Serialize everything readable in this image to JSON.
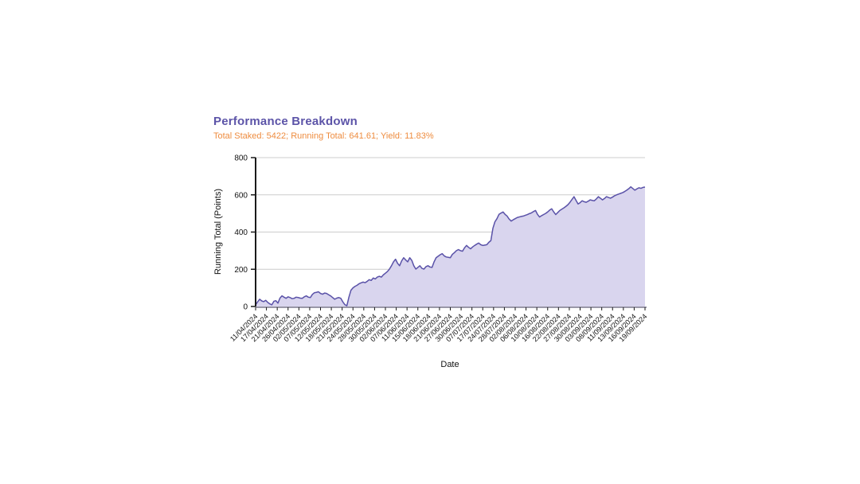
{
  "header": {
    "title": "Performance Breakdown",
    "subtitle": "Total Staked: 5422; Running Total: 641.61; Yield: 11.83%"
  },
  "stats": {
    "total_staked": "5422",
    "running_total": "641.61",
    "yield": "11.83%"
  },
  "colors": {
    "title_text": "#5c54a8",
    "subtitle_text": "#ee8c3f",
    "line": "#5a52a8",
    "area_fill": "#d9d5ee",
    "grid": "#cccccc",
    "y_axis": "#1a1a1a",
    "x_axis": "#9a98a8",
    "tick_text": "#111111"
  },
  "chart_data": {
    "type": "area",
    "title": "Performance Breakdown",
    "subtitle": "Total Staked: 5422; Running Total: 641.61; Yield: 11.83%",
    "xlabel": "Date",
    "ylabel": "Running Total (Points)",
    "ylim": [
      0,
      800
    ],
    "yticks": [
      0,
      200,
      400,
      600,
      800
    ],
    "grid": "horizontal-only",
    "legend": "none",
    "x_tick_labels": [
      "11/04/2024",
      "17/04/2024",
      "21/04/2024",
      "26/04/2024",
      "02/05/2024",
      "07/05/2024",
      "12/05/2024",
      "18/05/2024",
      "21/05/2024",
      "24/05/2024",
      "28/05/2024",
      "30/05/2024",
      "02/06/2024",
      "07/06/2024",
      "11/06/2024",
      "15/06/2024",
      "18/06/2024",
      "21/06/2024",
      "27/06/2024",
      "30/06/2024",
      "07/07/2024",
      "17/07/2024",
      "24/07/2024",
      "28/07/2024",
      "02/08/2024",
      "06/08/2024",
      "10/08/2024",
      "16/08/2024",
      "22/08/2024",
      "27/08/2024",
      "30/08/2024",
      "03/09/2024",
      "08/09/2024",
      "11/09/2024",
      "13/09/2024",
      "16/09/2024",
      "19/09/2024"
    ],
    "series": [
      {
        "name": "Running Total",
        "final_value": 641.61,
        "values": [
          9,
          25,
          39,
          30,
          26,
          33,
          22,
          14,
          9,
          28,
          31,
          18,
          45,
          57,
          50,
          44,
          52,
          48,
          42,
          44,
          50,
          48,
          45,
          44,
          52,
          57,
          50,
          48,
          65,
          74,
          76,
          79,
          70,
          66,
          72,
          70,
          63,
          57,
          48,
          39,
          45,
          48,
          44,
          25,
          10,
          4,
          50,
          87,
          100,
          108,
          114,
          122,
          127,
          131,
          128,
          135,
          144,
          140,
          153,
          148,
          158,
          162,
          158,
          170,
          179,
          188,
          201,
          219,
          240,
          254,
          232,
          219,
          245,
          262,
          250,
          240,
          262,
          248,
          219,
          201,
          210,
          219,
          205,
          201,
          214,
          219,
          212,
          210,
          240,
          262,
          270,
          278,
          284,
          272,
          266,
          264,
          262,
          280,
          289,
          300,
          306,
          300,
          297,
          315,
          328,
          318,
          310,
          320,
          328,
          335,
          341,
          332,
          328,
          330,
          332,
          345,
          354,
          420,
          455,
          472,
          495,
          502,
          508,
          495,
          486,
          470,
          459,
          466,
          472,
          478,
          481,
          484,
          486,
          490,
          494,
          499,
          503,
          510,
          516,
          495,
          481,
          488,
          494,
          500,
          508,
          518,
          525,
          508,
          494,
          505,
          516,
          523,
          530,
          538,
          547,
          560,
          575,
          590,
          570,
          551,
          558,
          568,
          563,
          560,
          566,
          573,
          570,
          568,
          578,
          590,
          582,
          573,
          580,
          590,
          586,
          582,
          588,
          595,
          600,
          604,
          608,
          612,
          618,
          625,
          633,
          643,
          634,
          625,
          632,
          638,
          635,
          640,
          641.61
        ]
      }
    ]
  }
}
